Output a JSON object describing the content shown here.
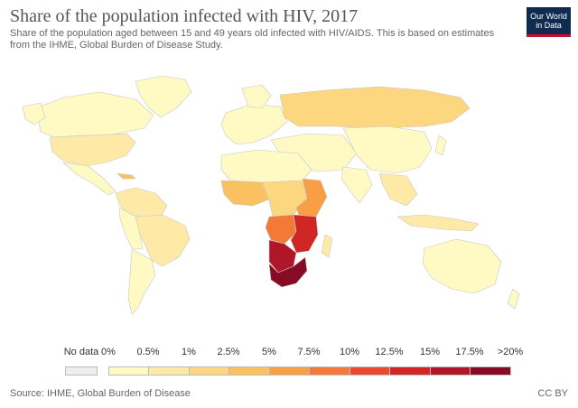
{
  "header": {
    "title": "Share of the population infected with HIV, 2017",
    "subtitle": "Share of the population aged between 15 and 49 years old infected with HIV/AIDS. This is based on estimates from the IHME, Global Burden of Disease Study.",
    "logo_line1": "Our World",
    "logo_line2": "in Data",
    "logo_color": "#0f2b4f",
    "logo_accent": "#c8102e"
  },
  "legend": {
    "no_data_label": "No data",
    "no_data_color": "#eeeeee",
    "bins": [
      {
        "label": "0%",
        "color": "#fff9c4"
      },
      {
        "label": "0.5%",
        "color": "#fee9a6"
      },
      {
        "label": "1%",
        "color": "#fdd780"
      },
      {
        "label": "2.5%",
        "color": "#fbc05f"
      },
      {
        "label": "5%",
        "color": "#f89f45"
      },
      {
        "label": "7.5%",
        "color": "#f27a36"
      },
      {
        "label": "10%",
        "color": "#e74b2d"
      },
      {
        "label": "12.5%",
        "color": "#d02626"
      },
      {
        "label": "15%",
        "color": "#b01628"
      },
      {
        "label": "17.5%",
        "color": "#850c24"
      }
    ],
    "end_label": ">20%"
  },
  "footer": {
    "source": "Source: IHME, Global Burden of Disease",
    "license": "CC BY"
  }
}
